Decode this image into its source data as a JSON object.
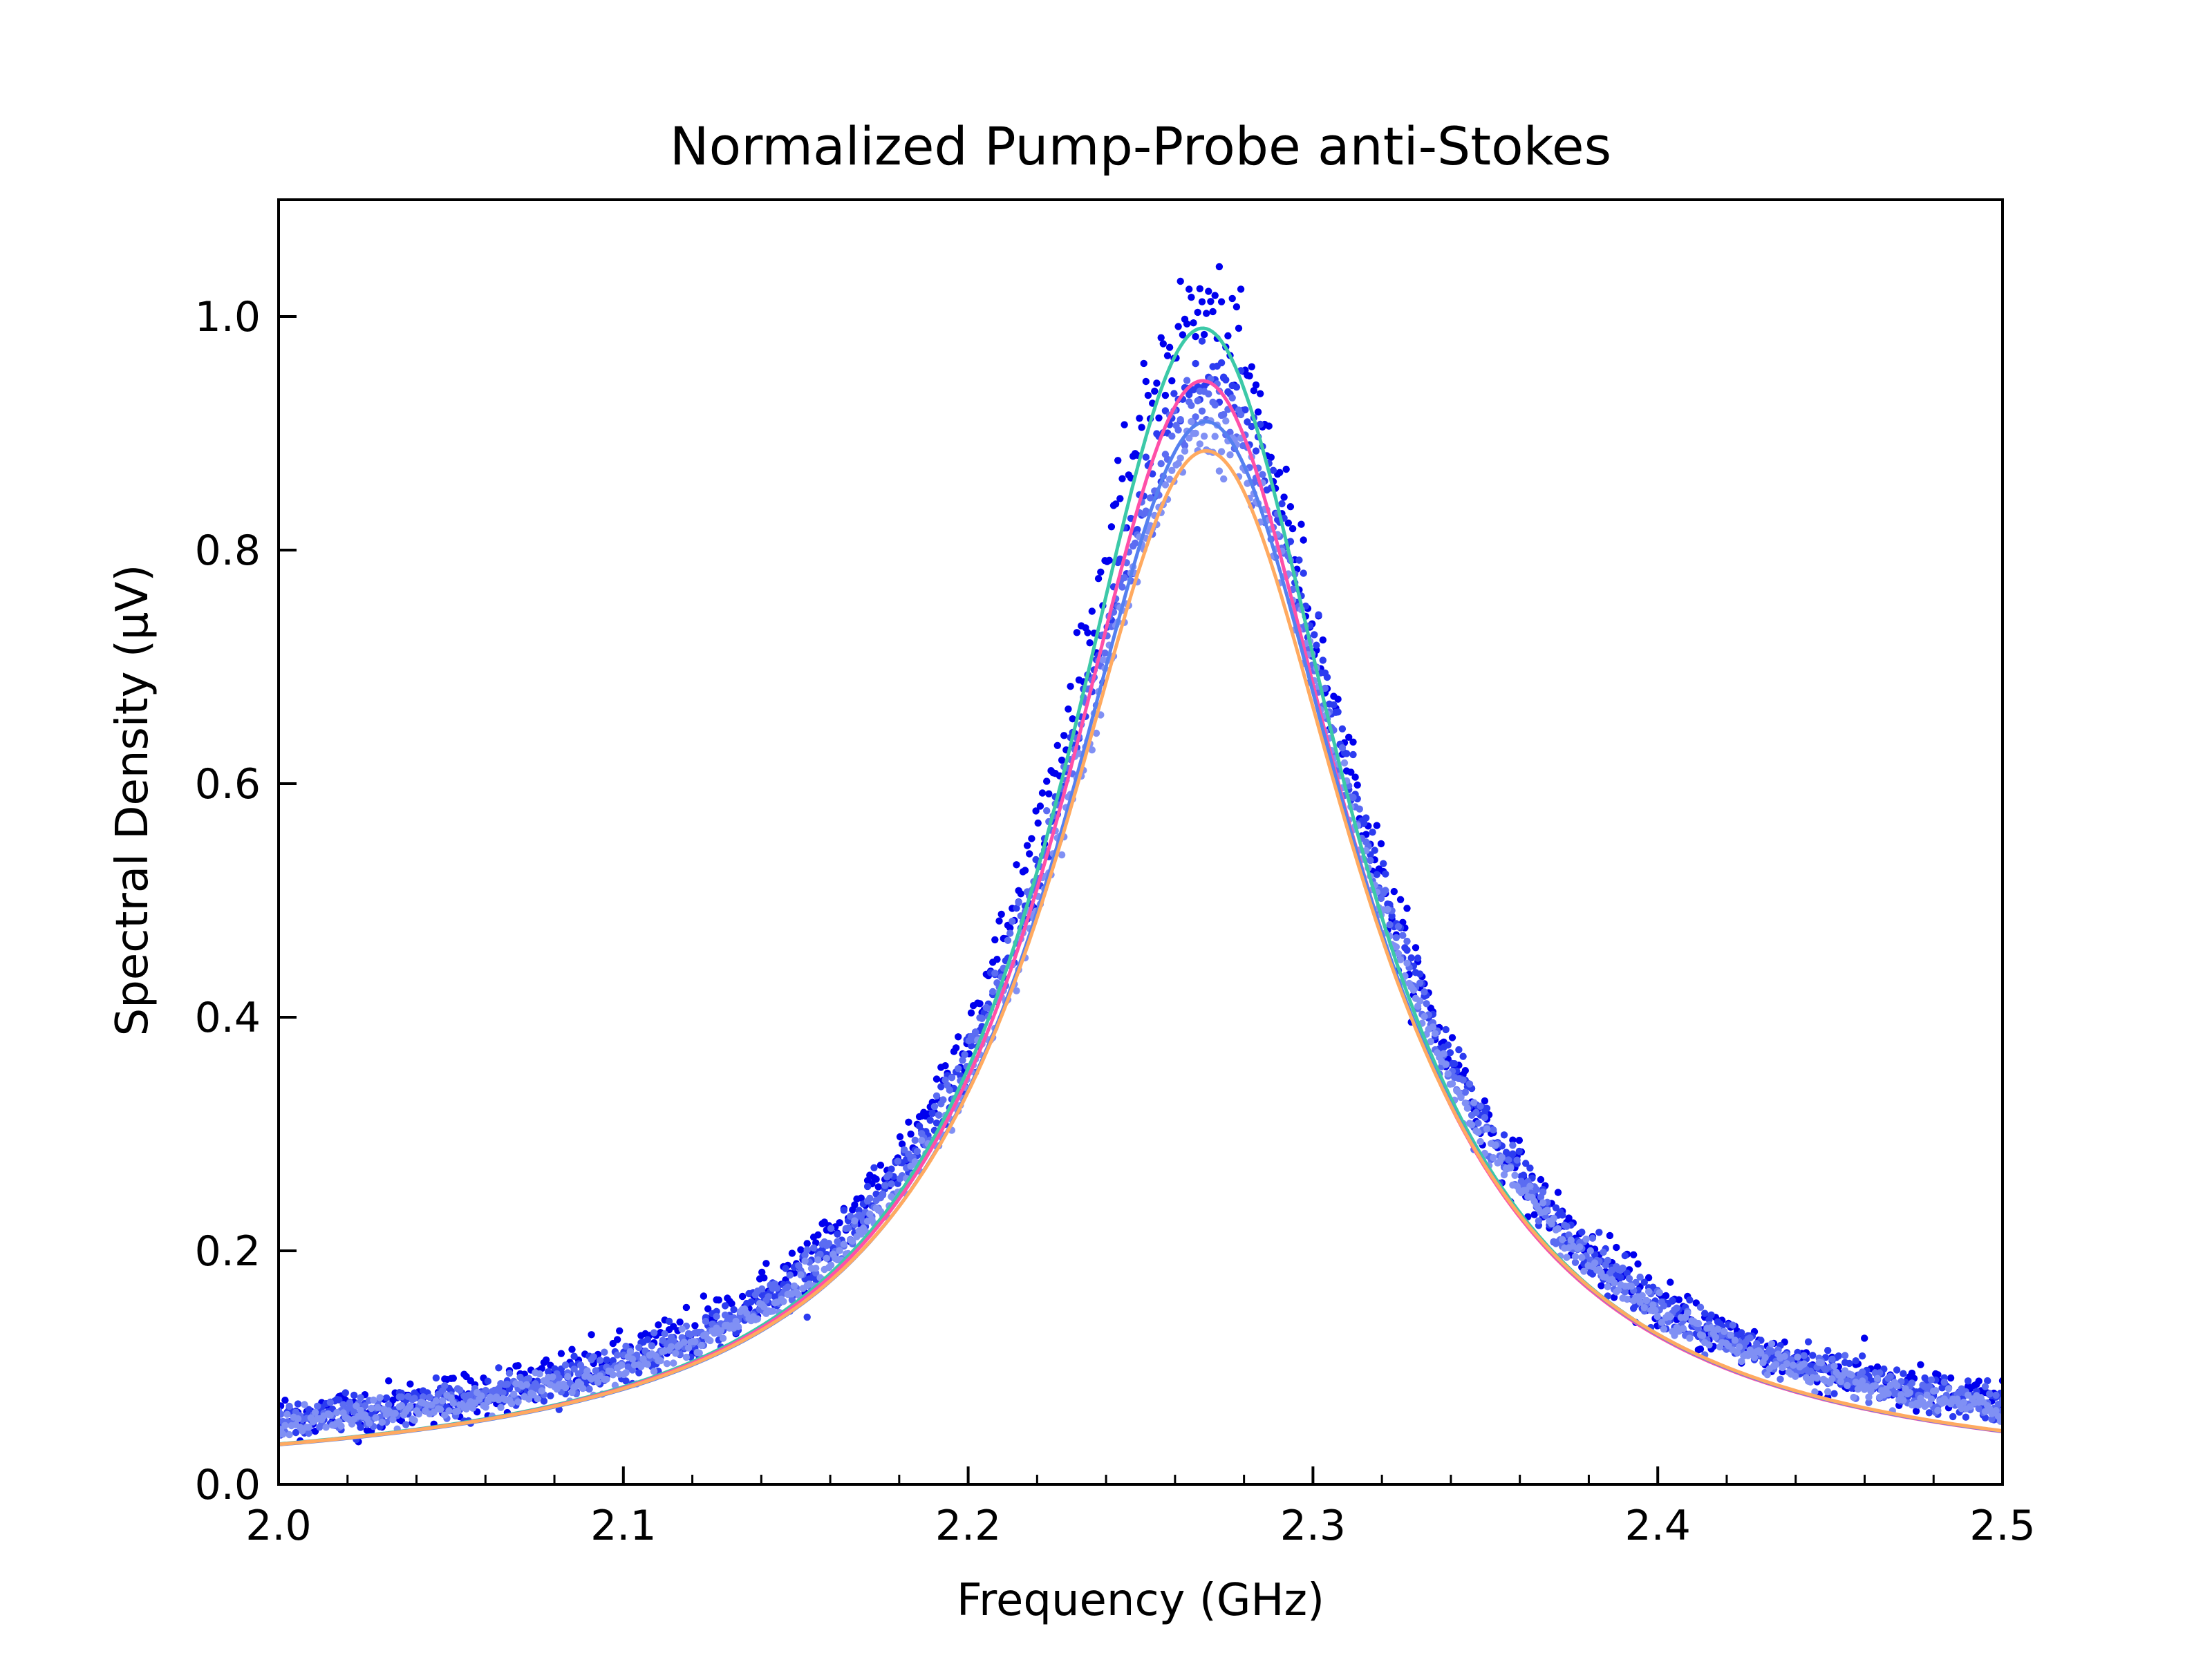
{
  "chart_data": {
    "type": "scatter",
    "title": "Normalized Pump-Probe anti-Stokes",
    "xlabel": "Frequency (GHz)",
    "ylabel": "Spectral Density (μV)",
    "xlim": [
      2.0,
      2.5
    ],
    "ylim": [
      0.0,
      1.1
    ],
    "x_ticks": [
      "2.0",
      "2.1",
      "2.2",
      "2.3",
      "2.4",
      "2.5"
    ],
    "y_ticks": [
      "0.0",
      "0.2",
      "0.4",
      "0.6",
      "0.8",
      "1.0"
    ],
    "grid": false,
    "legend": "none",
    "scatter_series": [
      {
        "color": "#0000ee",
        "center": 2.268,
        "amplitude": 0.985,
        "hwhm": 0.053,
        "offset": 0.005,
        "noise": 0.022,
        "x_range": [
          2.0,
          2.5
        ]
      },
      {
        "color": "#2c3cf0",
        "center": 2.27,
        "amplitude": 0.93,
        "hwhm": 0.054,
        "offset": 0.004,
        "noise": 0.018,
        "x_range": [
          2.0,
          2.5
        ]
      },
      {
        "color": "#5b6cf2",
        "center": 2.269,
        "amplitude": 0.905,
        "hwhm": 0.055,
        "offset": 0.003,
        "noise": 0.014,
        "x_range": [
          2.0,
          2.5
        ]
      },
      {
        "color": "#8090f4",
        "center": 2.27,
        "amplitude": 0.885,
        "hwhm": 0.054,
        "offset": 0.002,
        "noise": 0.012,
        "x_range": [
          2.0,
          2.5
        ]
      }
    ],
    "fit_curves": [
      {
        "color": "#3cc9a8",
        "center": 2.268,
        "amplitude": 0.99,
        "hwhm": 0.051
      },
      {
        "color": "#ff4fa8",
        "center": 2.268,
        "amplitude": 0.945,
        "hwhm": 0.052
      },
      {
        "color": "#5580f0",
        "center": 2.269,
        "amplitude": 0.91,
        "hwhm": 0.053
      },
      {
        "color": "#ffaa60",
        "center": 2.269,
        "amplitude": 0.885,
        "hwhm": 0.054
      }
    ]
  }
}
